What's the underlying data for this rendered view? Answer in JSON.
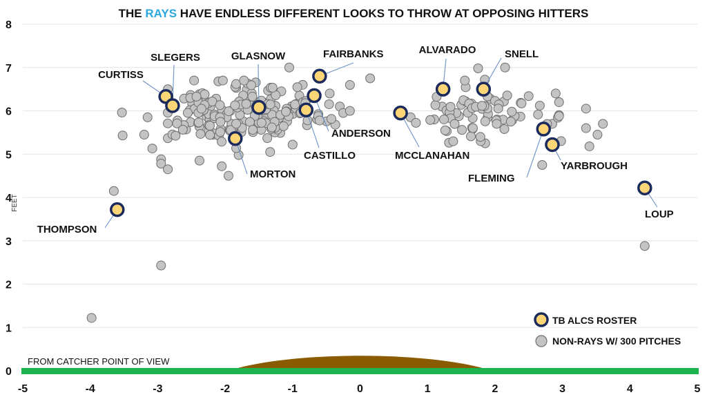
{
  "chart_data": {
    "type": "scatter",
    "title_parts": [
      "THE ",
      "RAYS",
      " HAVE ENDLESS DIFFERENT LOOKS TO THROW AT OPPOSING HITTERS"
    ],
    "ylabel": "FEET",
    "xlim": [
      -5,
      5
    ],
    "ylim": [
      0,
      8
    ],
    "x_ticks": [
      "-5",
      "-4",
      "-3",
      "-2",
      "-1",
      "0",
      "1",
      "2",
      "3",
      "4",
      "5"
    ],
    "y_ticks": [
      "0",
      "1",
      "2",
      "3",
      "4",
      "5",
      "6",
      "7",
      "8"
    ],
    "grid": "horizontal",
    "ground_label": "FROM CATCHER POINT OF VIEW",
    "colors": {
      "accent": "#2aa7df",
      "rays_fill": "#fcd676",
      "rays_edge": "#1a2a5c",
      "grey_fill": "#c4c4c4",
      "grey_edge": "#6e6e6e",
      "ground": "#1db44f",
      "mound": "#8a5b00"
    },
    "legend": {
      "position": "bottom-right",
      "rays_label": "TB ALCS ROSTER",
      "others_label": "NON-RAYS W/ 300 PITCHES"
    },
    "rays": [
      {
        "name": "CURTISS",
        "x": -2.88,
        "y": 6.33
      },
      {
        "name": "SLEGERS",
        "x": -2.78,
        "y": 6.12
      },
      {
        "name": "GLASNOW",
        "x": -1.5,
        "y": 6.08
      },
      {
        "name": "MORTON",
        "x": -1.85,
        "y": 5.36
      },
      {
        "name": "FAIRBANKS",
        "x": -0.6,
        "y": 6.8
      },
      {
        "name": "ANDERSON",
        "x": -0.68,
        "y": 6.35
      },
      {
        "name": "CASTILLO",
        "x": -0.8,
        "y": 6.02
      },
      {
        "name": "ALVARADO",
        "x": 1.23,
        "y": 6.5
      },
      {
        "name": "SNELL",
        "x": 1.83,
        "y": 6.5
      },
      {
        "name": "MCCLANAHAN",
        "x": 0.6,
        "y": 5.95
      },
      {
        "name": "FLEMING",
        "x": 2.72,
        "y": 5.58
      },
      {
        "name": "YARBROUGH",
        "x": 2.85,
        "y": 5.22
      },
      {
        "name": "THOMPSON",
        "x": -3.6,
        "y": 3.72
      },
      {
        "name": "LOUP",
        "x": 4.22,
        "y": 4.22
      }
    ],
    "others_seed": 20240531,
    "others": [
      {
        "x": -3.53,
        "y": 5.96
      },
      {
        "x": -3.52,
        "y": 5.43
      },
      {
        "x": -3.15,
        "y": 5.85
      },
      {
        "x": -3.2,
        "y": 5.45
      },
      {
        "x": -3.08,
        "y": 5.13
      },
      {
        "x": -2.95,
        "y": 4.88
      },
      {
        "x": -2.95,
        "y": 4.78
      },
      {
        "x": -2.85,
        "y": 4.65
      },
      {
        "x": -3.65,
        "y": 4.15
      },
      {
        "x": -2.95,
        "y": 2.43
      },
      {
        "x": -3.98,
        "y": 1.22
      },
      {
        "x": 4.22,
        "y": 2.88
      },
      {
        "x": 3.35,
        "y": 6.05
      },
      {
        "x": 3.6,
        "y": 5.7
      },
      {
        "x": 3.35,
        "y": 5.6
      },
      {
        "x": 3.52,
        "y": 5.45
      },
      {
        "x": 3.4,
        "y": 5.18
      },
      {
        "x": 2.98,
        "y": 5.3
      },
      {
        "x": 2.7,
        "y": 4.75
      },
      {
        "x": -1.95,
        "y": 4.5
      },
      {
        "x": -2.38,
        "y": 4.85
      },
      {
        "x": -2.05,
        "y": 4.72
      },
      {
        "x": -1.8,
        "y": 4.98
      },
      {
        "x": 0.15,
        "y": 6.75
      },
      {
        "x": -1.05,
        "y": 7.0
      },
      {
        "x": -0.85,
        "y": 6.6
      },
      {
        "x": -0.9,
        "y": 6.35
      },
      {
        "x": 2.15,
        "y": 7.0
      },
      {
        "x": 1.75,
        "y": 6.98
      },
      {
        "x": 1.85,
        "y": 6.72
      },
      {
        "x": 2.9,
        "y": 6.4
      },
      {
        "x": -2.1,
        "y": 6.68
      },
      {
        "x": -0.45,
        "y": 6.4
      },
      {
        "x": -0.3,
        "y": 6.1
      },
      {
        "x": -0.25,
        "y": 5.95
      },
      {
        "x": -1.0,
        "y": 5.22
      },
      {
        "x": 0.75,
        "y": 5.85
      },
      {
        "x": 1.1,
        "y": 5.8
      },
      {
        "x": 2.85,
        "y": 5.7
      },
      {
        "x": 2.95,
        "y": 6.2
      }
    ],
    "clusters": [
      {
        "cx": -1.85,
        "cy": 5.92,
        "sx": 0.55,
        "sy": 0.36,
        "n": 160,
        "xmin": -2.85,
        "xmax": -0.95,
        "ymin": 5.05,
        "ymax": 6.7
      },
      {
        "cx": -0.7,
        "cy": 6.0,
        "sx": 0.3,
        "sy": 0.3,
        "n": 22,
        "xmin": -1.1,
        "xmax": -0.15,
        "ymin": 5.3,
        "ymax": 6.75
      },
      {
        "cx": 1.85,
        "cy": 5.92,
        "sx": 0.55,
        "sy": 0.3,
        "n": 70,
        "xmin": 0.7,
        "xmax": 2.95,
        "ymin": 5.25,
        "ymax": 6.7
      }
    ]
  }
}
